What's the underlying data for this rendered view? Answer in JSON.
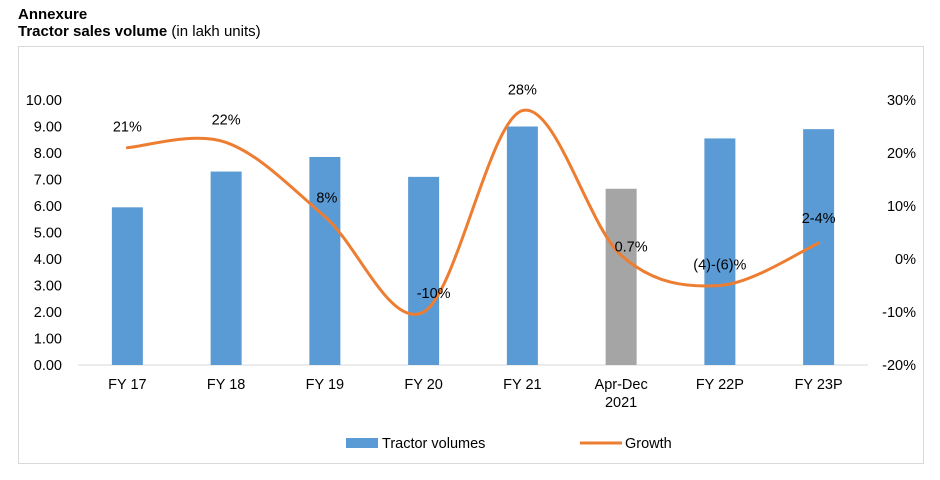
{
  "header": {
    "annexure": "Annexure",
    "title_bold": "Tractor sales volume",
    "title_unit": "(in lakh units)"
  },
  "chart_data": {
    "type": "bar+line",
    "categories": [
      [
        "FY 17"
      ],
      [
        "FY 18"
      ],
      [
        "FY 19"
      ],
      [
        "FY 20"
      ],
      [
        "FY 21"
      ],
      [
        "Apr-Dec",
        "2021"
      ],
      [
        "FY 22P"
      ],
      [
        "FY 23P"
      ]
    ],
    "series": [
      {
        "name": "Tractor volumes",
        "type": "bar",
        "axis": "left",
        "values": [
          5.95,
          7.3,
          7.85,
          7.1,
          9.0,
          6.65,
          8.55,
          8.9
        ],
        "colors": [
          "#5b9bd5",
          "#5b9bd5",
          "#5b9bd5",
          "#5b9bd5",
          "#5b9bd5",
          "#a5a5a5",
          "#5b9bd5",
          "#5b9bd5"
        ]
      },
      {
        "name": "Growth",
        "type": "line",
        "axis": "right",
        "smooth": true,
        "color": "#ed7d31",
        "values": [
          21,
          22,
          8,
          -10,
          28,
          0.7,
          -5,
          3
        ],
        "labels": [
          "21%",
          "22%",
          "8%",
          "-10%",
          "28%",
          "0.7%",
          "(4)-(6)%",
          "2-4%"
        ]
      }
    ],
    "y_left": {
      "min": 0,
      "max": 10,
      "step": 1,
      "tick_labels": [
        "0.00",
        "1.00",
        "2.00",
        "3.00",
        "4.00",
        "5.00",
        "6.00",
        "7.00",
        "8.00",
        "9.00",
        "10.00"
      ]
    },
    "y_right": {
      "min": -20,
      "max": 30,
      "step": 10,
      "tick_labels": [
        "-20%",
        "-10%",
        "0%",
        "10%",
        "20%",
        "30%"
      ]
    },
    "grid": false,
    "legend_position": "bottom"
  }
}
